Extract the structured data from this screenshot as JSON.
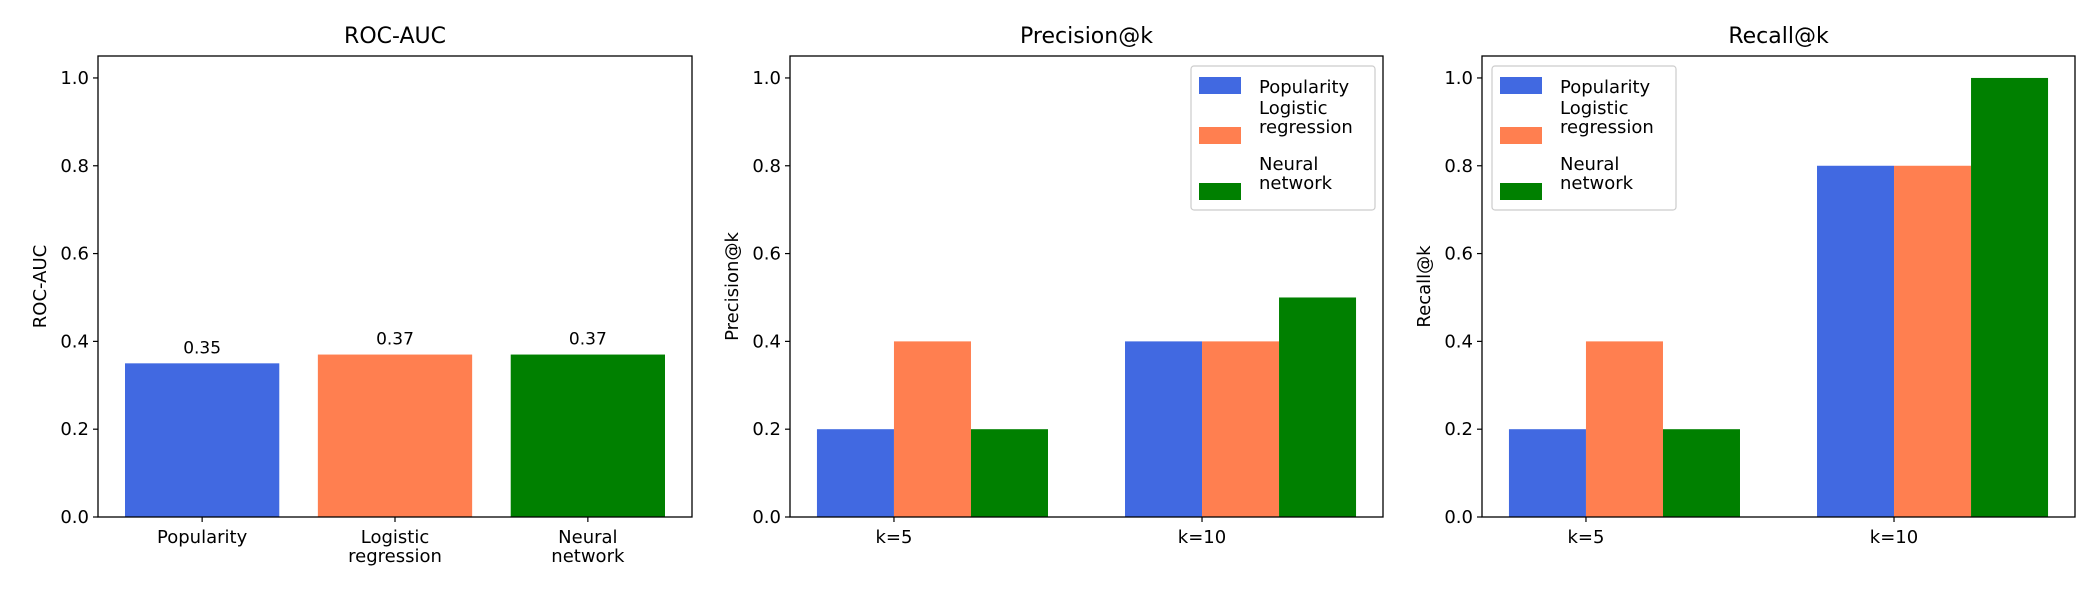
{
  "colors": {
    "Popularity": "#4169e1",
    "Logistic regression": "#ff7f50",
    "Neural network": "#008000"
  },
  "chart_data": [
    {
      "type": "bar",
      "title": "ROC-AUC",
      "xlabel": "",
      "ylabel": "ROC-AUC",
      "categories": [
        "Popularity",
        "Logistic\nregression",
        "Neural\nnetwork"
      ],
      "values": [
        0.35,
        0.37,
        0.37
      ],
      "data_labels": [
        "0.35",
        "0.37",
        "0.37"
      ],
      "ylim": [
        0,
        1.05
      ],
      "xlim": [
        -0.54,
        2.54
      ],
      "yticks": [
        "0.0",
        "0.2",
        "0.4",
        "0.6",
        "0.8",
        "1.0"
      ],
      "grid": false
    },
    {
      "type": "bar",
      "title": "Precision@k",
      "xlabel": "",
      "ylabel": "Precision@k",
      "categories": [
        "k=5",
        "k=10"
      ],
      "series": [
        {
          "name": "Popularity",
          "values": [
            0.2,
            0.4
          ]
        },
        {
          "name": "Logistic\nregression",
          "values": [
            0.4,
            0.4
          ]
        },
        {
          "name": "Neural\nnetwork",
          "values": [
            0.2,
            0.5
          ]
        }
      ],
      "ylim": [
        0,
        1.05
      ],
      "xlim": [
        -0.3375,
        1.5875
      ],
      "yticks": [
        "0.0",
        "0.2",
        "0.4",
        "0.6",
        "0.8",
        "1.0"
      ],
      "legend": "top-right",
      "grid": false
    },
    {
      "type": "bar",
      "title": "Recall@k",
      "xlabel": "",
      "ylabel": "Recall@k",
      "categories": [
        "k=5",
        "k=10"
      ],
      "series": [
        {
          "name": "Popularity",
          "values": [
            0.2,
            0.8
          ]
        },
        {
          "name": "Logistic\nregression",
          "values": [
            0.4,
            0.8
          ]
        },
        {
          "name": "Neural\nnetwork",
          "values": [
            0.2,
            1.0
          ]
        }
      ],
      "ylim": [
        0,
        1.05
      ],
      "xlim": [
        -0.3375,
        1.5875
      ],
      "yticks": [
        "0.0",
        "0.2",
        "0.4",
        "0.6",
        "0.8",
        "1.0"
      ],
      "legend": "top-left",
      "grid": false
    }
  ]
}
